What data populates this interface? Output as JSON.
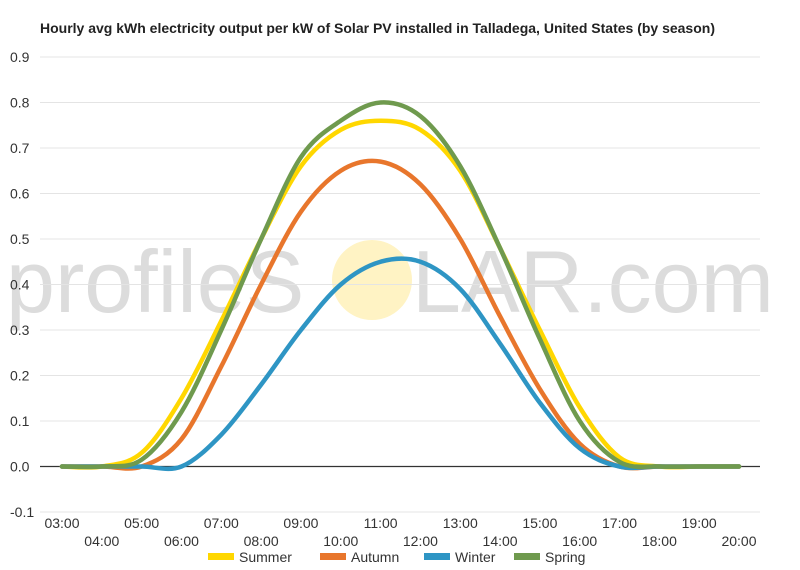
{
  "chart_data": {
    "type": "line",
    "title": "Hourly avg kWh electricity output per kW of Solar PV installed in Talladega, United States (by season)",
    "xlabel": "",
    "ylabel": "",
    "x": [
      "03:00",
      "04:00",
      "05:00",
      "06:00",
      "07:00",
      "08:00",
      "09:00",
      "10:00",
      "11:00",
      "12:00",
      "13:00",
      "14:00",
      "15:00",
      "16:00",
      "17:00",
      "18:00",
      "19:00",
      "20:00"
    ],
    "ylim": [
      -0.1,
      0.9
    ],
    "yticks": [
      -0.1,
      0.0,
      0.1,
      0.2,
      0.3,
      0.4,
      0.5,
      0.6,
      0.7,
      0.8,
      0.9
    ],
    "ytick_labels": [
      "-0.1",
      "0.0",
      "0.1",
      "0.2",
      "0.3",
      "0.4",
      "0.5",
      "0.6",
      "0.7",
      "0.8",
      "0.9"
    ],
    "grid": true,
    "legend": "bottom",
    "series": [
      {
        "name": "Summer",
        "color": "#ffd700",
        "values": [
          0.0,
          0.0,
          0.03,
          0.15,
          0.32,
          0.5,
          0.66,
          0.74,
          0.76,
          0.74,
          0.65,
          0.48,
          0.3,
          0.13,
          0.02,
          0.0,
          0.0,
          0.0
        ]
      },
      {
        "name": "Autumn",
        "color": "#e8762c",
        "values": [
          0.0,
          0.0,
          0.0,
          0.06,
          0.22,
          0.4,
          0.56,
          0.65,
          0.67,
          0.62,
          0.5,
          0.33,
          0.17,
          0.05,
          0.0,
          0.0,
          0.0,
          0.0
        ]
      },
      {
        "name": "Winter",
        "color": "#2e95c4",
        "values": [
          0.0,
          0.0,
          0.0,
          0.0,
          0.07,
          0.18,
          0.3,
          0.4,
          0.45,
          0.45,
          0.39,
          0.27,
          0.14,
          0.04,
          0.0,
          0.0,
          0.0,
          0.0
        ]
      },
      {
        "name": "Spring",
        "color": "#6f9a4e",
        "values": [
          0.0,
          0.0,
          0.015,
          0.12,
          0.3,
          0.5,
          0.68,
          0.76,
          0.8,
          0.77,
          0.66,
          0.48,
          0.28,
          0.1,
          0.01,
          0.0,
          0.0,
          0.0
        ]
      }
    ]
  },
  "watermark": {
    "text_left": "profileS",
    "text_right": "LAR.com"
  }
}
